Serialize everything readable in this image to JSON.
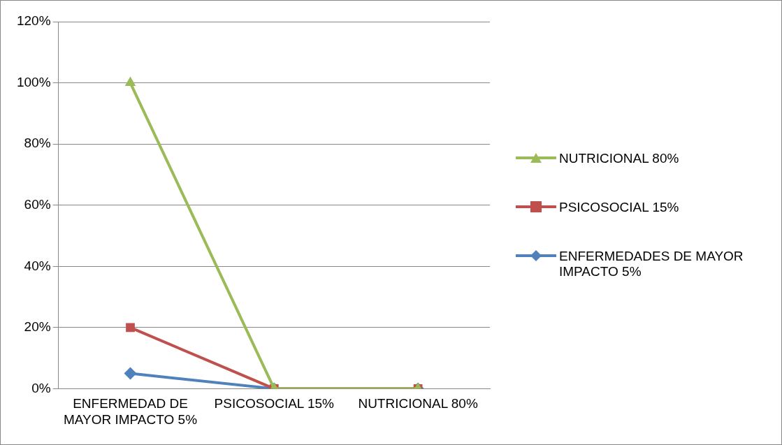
{
  "chart_data": {
    "type": "line",
    "categories": [
      "ENFERMEDAD DE MAYOR IMPACTO 5%",
      "PSICOSOCIAL 15%",
      "NUTRICIONAL 80%"
    ],
    "series": [
      {
        "name": "NUTRICIONAL 80%",
        "color": "#9bbb59",
        "marker": "triangle",
        "values": [
          100,
          0,
          0
        ]
      },
      {
        "name": "PSICOSOCIAL 15%",
        "color": "#c0504d",
        "marker": "square",
        "values": [
          20,
          0,
          0
        ]
      },
      {
        "name": "ENFERMEDADES DE MAYOR IMPACTO 5%",
        "color": "#4f81bd",
        "marker": "diamond",
        "values": [
          5,
          0,
          0
        ]
      }
    ],
    "ylim": [
      0,
      120
    ],
    "yticks": [
      {
        "value": 0,
        "label": "0%"
      },
      {
        "value": 20,
        "label": "20%"
      },
      {
        "value": 40,
        "label": "40%"
      },
      {
        "value": 60,
        "label": "60%"
      },
      {
        "value": 80,
        "label": "80%"
      },
      {
        "value": 100,
        "label": "100%"
      },
      {
        "value": 120,
        "label": "120%"
      }
    ],
    "grid": "y",
    "legend": "right",
    "line_style": "solid"
  }
}
